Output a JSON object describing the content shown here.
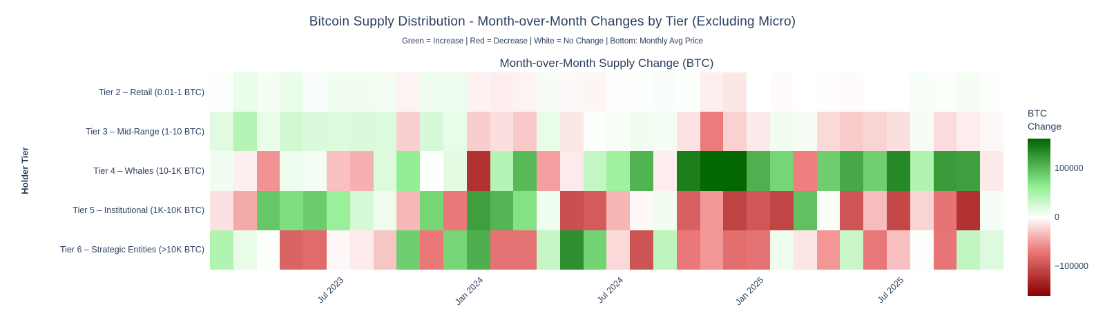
{
  "title": "Bitcoin Supply Distribution - Month-over-Month Changes by Tier (Excluding Micro)",
  "subtitle": "Green = Increase | Red = Decrease | White = No Change | Bottom: Monthly Avg Price",
  "panel_title": "Month-over-Month Supply Change (BTC)",
  "y_axis_title": "Holder Tier",
  "text_color": "#2a3f5f",
  "background_color": "#ffffff",
  "colorbar": {
    "title_line1": "BTC",
    "title_line2": "Change",
    "ticks": [
      {
        "value": 100000,
        "label": "100000"
      },
      {
        "value": 0,
        "label": "0"
      },
      {
        "value": -100000,
        "label": "−100000"
      }
    ]
  },
  "chart_data": {
    "type": "heatmap",
    "x": [
      "Feb 2023",
      "Mar 2023",
      "Apr 2023",
      "May 2023",
      "Jun 2023",
      "Jul 2023",
      "Aug 2023",
      "Sep 2023",
      "Oct 2023",
      "Nov 2023",
      "Dec 2023",
      "Jan 2024",
      "Feb 2024",
      "Mar 2024",
      "Apr 2024",
      "May 2024",
      "Jun 2024",
      "Jul 2024",
      "Aug 2024",
      "Sep 2024",
      "Oct 2024",
      "Nov 2024",
      "Dec 2024",
      "Jan 2025",
      "Feb 2025",
      "Mar 2025",
      "Apr 2025",
      "May 2025",
      "Jun 2025",
      "Jul 2025",
      "Aug 2025",
      "Sep 2025",
      "Oct 2025",
      "Nov 2025"
    ],
    "x_ticks": [
      {
        "label": "Jul 2023",
        "index": 5
      },
      {
        "label": "Jan 2024",
        "index": 11
      },
      {
        "label": "Jul 2024",
        "index": 17
      },
      {
        "label": "Jan 2025",
        "index": 23
      },
      {
        "label": "Jul 2025",
        "index": 29
      }
    ],
    "y": [
      "Tier 2 – Retail (0.01-1 BTC)",
      "Tier 3 – Mid-Range (1-10 BTC)",
      "Tier 4 – Whales (10-1K BTC)",
      "Tier 5 – Institutional (1K-10K BTC)",
      "Tier 6 – Strategic Entities (>10K BTC)"
    ],
    "series": [
      {
        "name": "Tier 2 – Retail (0.01-1 BTC)",
        "values": [
          1000,
          12000,
          6000,
          12000,
          3000,
          8000,
          8000,
          7000,
          -6000,
          9000,
          10000,
          -7000,
          -9000,
          -6000,
          6000,
          -3000,
          -5000,
          -1000,
          1000,
          3000,
          1000,
          -8000,
          -12000,
          0,
          -2000,
          0,
          -1000,
          -2000,
          0,
          0,
          4000,
          2000,
          6000,
          1000
        ]
      },
      {
        "name": "Tier 3 – Mid-Range (1-10 BTC)",
        "values": [
          17000,
          42000,
          12000,
          26000,
          21000,
          20000,
          21000,
          20000,
          -24000,
          23000,
          13000,
          -25000,
          -16000,
          -27000,
          13000,
          -12000,
          1000,
          5000,
          8000,
          7000,
          -14000,
          -68000,
          -23000,
          -11000,
          8000,
          6000,
          -19000,
          -26000,
          -22000,
          -16000,
          6000,
          -18000,
          -9000,
          -4000
        ]
      },
      {
        "name": "Tier 4 – Whales (10-1K BTC)",
        "values": [
          8000,
          -8000,
          -55000,
          10000,
          7000,
          -32000,
          -40000,
          20000,
          62000,
          1000,
          16000,
          -123000,
          43000,
          101000,
          -48000,
          -10000,
          35000,
          55000,
          105000,
          -9000,
          141000,
          158000,
          158000,
          107000,
          81000,
          -65000,
          86000,
          112000,
          85000,
          134000,
          45000,
          122000,
          118000,
          -11000
        ]
      },
      {
        "name": "Tier 5 – Institutional (1K-10K BTC)",
        "values": [
          -15000,
          -43000,
          91000,
          75000,
          88000,
          58000,
          24000,
          10000,
          -36000,
          81000,
          -70000,
          119000,
          104000,
          72000,
          9000,
          -100000,
          -92000,
          -37000,
          -3000,
          8000,
          -88000,
          -52000,
          -110000,
          -95000,
          -108000,
          95000,
          4000,
          -96000,
          -34000,
          -106000,
          -22000,
          -73000,
          -123000,
          6000
        ]
      },
      {
        "name": "Tier 6 – Strategic Entities (>10K BTC)",
        "values": [
          45000,
          13000,
          1000,
          -85000,
          -80000,
          -4000,
          -10000,
          -29000,
          86000,
          -70000,
          81000,
          108000,
          -74000,
          -74000,
          33000,
          130000,
          83000,
          -19000,
          -97000,
          38000,
          -70000,
          -53000,
          -78000,
          -74000,
          10000,
          -13000,
          -53000,
          31000,
          -71000,
          -32000,
          1000,
          -72000,
          36000,
          19000
        ]
      }
    ],
    "zmin": -160000,
    "zmax": 160000,
    "colorscale": [
      [
        0.0,
        "#8b0000"
      ],
      [
        0.3,
        "#f08080"
      ],
      [
        0.5,
        "#ffffff"
      ],
      [
        0.7,
        "#90ee90"
      ],
      [
        1.0,
        "#006400"
      ]
    ],
    "grid": false,
    "legend_position": "right-colorbar"
  }
}
